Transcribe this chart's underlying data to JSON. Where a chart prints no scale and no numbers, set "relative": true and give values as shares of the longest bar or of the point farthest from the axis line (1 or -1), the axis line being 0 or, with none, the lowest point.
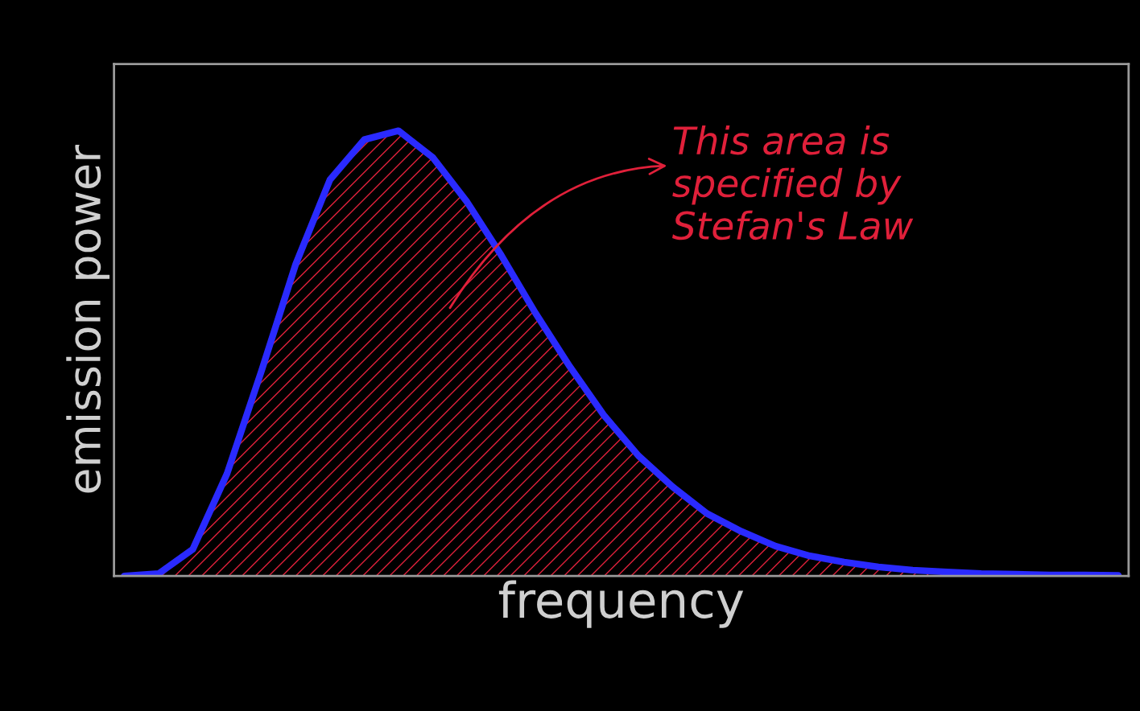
{
  "chart_data": {
    "type": "area",
    "relative": true,
    "xlabel": "frequency",
    "ylabel": "emission power",
    "categories": [
      null,
      null,
      null,
      null,
      null,
      null,
      null,
      null,
      null,
      null,
      null,
      null,
      null,
      null,
      null,
      null,
      null,
      null,
      null,
      null,
      null,
      null,
      null,
      null,
      null,
      null,
      null,
      null,
      null,
      null
    ],
    "series": [
      {
        "color": "#2a2aff",
        "values": [
          0,
          0.005,
          0.06,
          0.23,
          0.46,
          0.7,
          0.89,
          0.98,
          1.0,
          0.94,
          0.84,
          0.72,
          0.59,
          0.47,
          0.36,
          0.27,
          0.2,
          0.14,
          0.1,
          0.067,
          0.045,
          0.031,
          0.02,
          0.013,
          0.009,
          0.005,
          0.004,
          0.002,
          0.002,
          0.001
        ]
      }
    ],
    "annotations": [
      "This area is\nspecified by\nStefan's Law"
    ],
    "line_style": "solid"
  }
}
